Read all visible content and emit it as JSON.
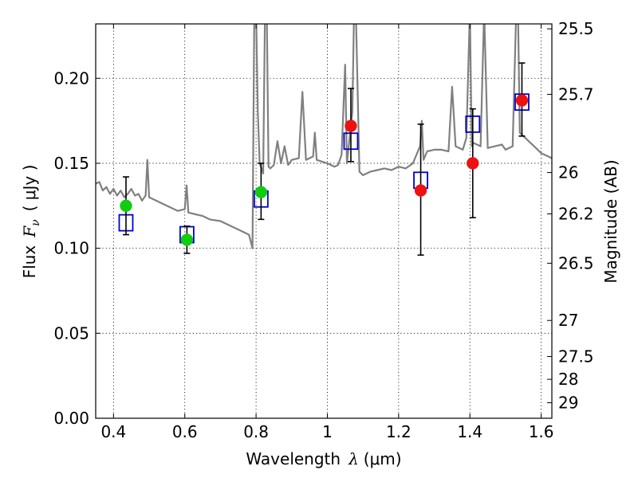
{
  "chart_data": {
    "type": "scatter",
    "xlabel": {
      "prefix": "Wavelength",
      "symbol": "λ",
      "unit": "(μm)"
    },
    "ylabel": {
      "prefix": "Flux",
      "symbol": "F",
      "subscript": "ν",
      "unit": "( μJy )"
    },
    "y2label": "Magnitude (AB)",
    "xlim": [
      0.35,
      1.63
    ],
    "ylim": [
      0.0,
      0.232
    ],
    "grid": true,
    "x_ticks": [
      {
        "value": 0.4,
        "label": "0.4"
      },
      {
        "value": 0.6,
        "label": "0.6"
      },
      {
        "value": 0.8,
        "label": "0.8"
      },
      {
        "value": 1.0,
        "label": "1"
      },
      {
        "value": 1.2,
        "label": "1.2"
      },
      {
        "value": 1.4,
        "label": "1.4"
      },
      {
        "value": 1.6,
        "label": "1.6"
      }
    ],
    "y_ticks": [
      {
        "value": 0.0,
        "label": "0.00"
      },
      {
        "value": 0.05,
        "label": "0.05"
      },
      {
        "value": 0.1,
        "label": "0.10"
      },
      {
        "value": 0.15,
        "label": "0.15"
      },
      {
        "value": 0.2,
        "label": "0.20"
      }
    ],
    "y2_ticks": [
      {
        "value": 25.5,
        "label": "25.5"
      },
      {
        "value": 25.7,
        "label": "25.7"
      },
      {
        "value": 26.0,
        "label": "26"
      },
      {
        "value": 26.2,
        "label": "26.2"
      },
      {
        "value": 26.5,
        "label": "26.5"
      },
      {
        "value": 27.0,
        "label": "27"
      },
      {
        "value": 27.5,
        "label": "27.5"
      },
      {
        "value": 28.0,
        "label": "28"
      },
      {
        "value": 29.0,
        "label": "29"
      }
    ],
    "series": [
      {
        "marker": "circle",
        "color": "#11cc11",
        "points": [
          {
            "x": 0.435,
            "y": 0.125,
            "yerr_low": 0.108,
            "yerr_high": 0.142
          },
          {
            "x": 0.606,
            "y": 0.105,
            "yerr_low": 0.097,
            "yerr_high": 0.113
          },
          {
            "x": 0.814,
            "y": 0.133,
            "yerr_low": 0.117,
            "yerr_high": 0.15
          }
        ]
      },
      {
        "marker": "circle",
        "color": "#ee1111",
        "points": [
          {
            "x": 1.066,
            "y": 0.172,
            "yerr_low": 0.151,
            "yerr_high": 0.194
          },
          {
            "x": 1.262,
            "y": 0.134,
            "yerr_low": 0.096,
            "yerr_high": 0.173
          },
          {
            "x": 1.408,
            "y": 0.15,
            "yerr_low": 0.118,
            "yerr_high": 0.182
          },
          {
            "x": 1.546,
            "y": 0.187,
            "yerr_low": 0.166,
            "yerr_high": 0.209
          }
        ]
      },
      {
        "marker": "square",
        "color": "#0000cc",
        "points": [
          {
            "x": 0.435,
            "y": 0.115
          },
          {
            "x": 0.606,
            "y": 0.108
          },
          {
            "x": 0.814,
            "y": 0.129
          },
          {
            "x": 1.066,
            "y": 0.163
          },
          {
            "x": 1.262,
            "y": 0.14
          },
          {
            "x": 1.408,
            "y": 0.173
          },
          {
            "x": 1.546,
            "y": 0.186
          }
        ]
      },
      {
        "marker": "line",
        "color": "#808080",
        "points": [
          [
            0.35,
            0.138
          ],
          [
            0.36,
            0.139
          ],
          [
            0.37,
            0.134
          ],
          [
            0.38,
            0.136
          ],
          [
            0.39,
            0.132
          ],
          [
            0.4,
            0.135
          ],
          [
            0.41,
            0.131
          ],
          [
            0.42,
            0.134
          ],
          [
            0.43,
            0.13
          ],
          [
            0.44,
            0.132
          ],
          [
            0.45,
            0.135
          ],
          [
            0.46,
            0.131
          ],
          [
            0.47,
            0.132
          ],
          [
            0.48,
            0.128
          ],
          [
            0.49,
            0.131
          ],
          [
            0.495,
            0.152
          ],
          [
            0.5,
            0.13
          ],
          [
            0.52,
            0.128
          ],
          [
            0.54,
            0.126
          ],
          [
            0.56,
            0.124
          ],
          [
            0.58,
            0.122
          ],
          [
            0.6,
            0.123
          ],
          [
            0.605,
            0.137
          ],
          [
            0.61,
            0.121
          ],
          [
            0.63,
            0.12
          ],
          [
            0.65,
            0.119
          ],
          [
            0.67,
            0.117
          ],
          [
            0.7,
            0.116
          ],
          [
            0.72,
            0.114
          ],
          [
            0.74,
            0.112
          ],
          [
            0.76,
            0.11
          ],
          [
            0.78,
            0.108
          ],
          [
            0.79,
            0.1
          ],
          [
            0.795,
            0.24
          ],
          [
            0.8,
            0.24
          ],
          [
            0.805,
            0.18
          ],
          [
            0.81,
            0.15
          ],
          [
            0.82,
            0.144
          ],
          [
            0.825,
            0.24
          ],
          [
            0.83,
            0.24
          ],
          [
            0.835,
            0.148
          ],
          [
            0.84,
            0.147
          ],
          [
            0.85,
            0.149
          ],
          [
            0.86,
            0.163
          ],
          [
            0.87,
            0.15
          ],
          [
            0.88,
            0.16
          ],
          [
            0.89,
            0.149
          ],
          [
            0.9,
            0.152
          ],
          [
            0.92,
            0.153
          ],
          [
            0.93,
            0.192
          ],
          [
            0.94,
            0.152
          ],
          [
            0.96,
            0.154
          ],
          [
            0.965,
            0.168
          ],
          [
            0.97,
            0.152
          ],
          [
            1.0,
            0.15
          ],
          [
            1.02,
            0.148
          ],
          [
            1.03,
            0.149
          ],
          [
            1.04,
            0.155
          ],
          [
            1.05,
            0.208
          ],
          [
            1.055,
            0.15
          ],
          [
            1.06,
            0.16
          ],
          [
            1.07,
            0.18
          ],
          [
            1.075,
            0.24
          ],
          [
            1.08,
            0.24
          ],
          [
            1.09,
            0.145
          ],
          [
            1.1,
            0.143
          ],
          [
            1.12,
            0.145
          ],
          [
            1.14,
            0.146
          ],
          [
            1.16,
            0.147
          ],
          [
            1.18,
            0.146
          ],
          [
            1.2,
            0.148
          ],
          [
            1.22,
            0.147
          ],
          [
            1.24,
            0.15
          ],
          [
            1.26,
            0.16
          ],
          [
            1.265,
            0.175
          ],
          [
            1.27,
            0.152
          ],
          [
            1.28,
            0.157
          ],
          [
            1.3,
            0.158
          ],
          [
            1.32,
            0.158
          ],
          [
            1.34,
            0.157
          ],
          [
            1.35,
            0.195
          ],
          [
            1.36,
            0.16
          ],
          [
            1.38,
            0.158
          ],
          [
            1.39,
            0.165
          ],
          [
            1.4,
            0.24
          ],
          [
            1.405,
            0.16
          ],
          [
            1.41,
            0.162
          ],
          [
            1.43,
            0.16
          ],
          [
            1.44,
            0.24
          ],
          [
            1.45,
            0.159
          ],
          [
            1.47,
            0.16
          ],
          [
            1.49,
            0.161
          ],
          [
            1.5,
            0.158
          ],
          [
            1.52,
            0.16
          ],
          [
            1.53,
            0.24
          ],
          [
            1.535,
            0.24
          ],
          [
            1.54,
            0.168
          ],
          [
            1.55,
            0.166
          ],
          [
            1.56,
            0.164
          ],
          [
            1.58,
            0.16
          ],
          [
            1.6,
            0.156
          ],
          [
            1.62,
            0.154
          ],
          [
            1.63,
            0.153
          ]
        ]
      }
    ]
  }
}
